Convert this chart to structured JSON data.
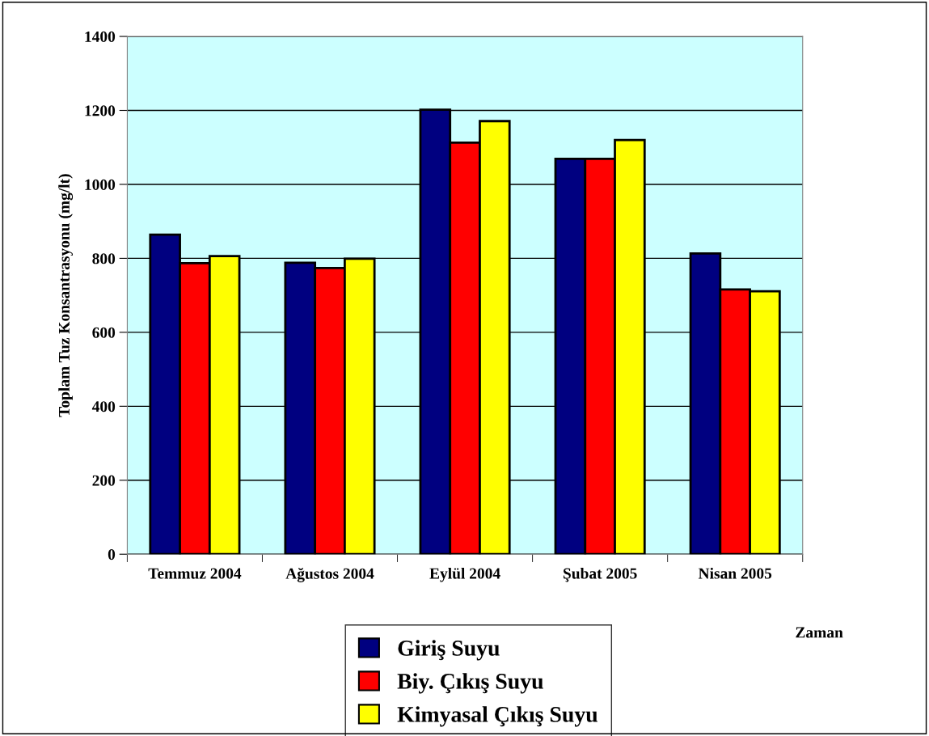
{
  "chart_data": {
    "type": "bar",
    "xlabel": "Zaman",
    "ylabel": "Toplam Tuz Konsantrasyonu (mg/lt)",
    "categories": [
      "Temmuz 2004",
      "Ağustos 2004",
      "Eylül 2004",
      "Şubat 2005",
      "Nisan 2005"
    ],
    "series": [
      {
        "name": "Giriş Suyu",
        "color": "#000080",
        "values": [
          864,
          788,
          1202,
          1069,
          813
        ]
      },
      {
        "name": "Biy. Çıkış Suyu",
        "color": "#ff0000",
        "values": [
          787,
          774,
          1113,
          1069,
          716
        ]
      },
      {
        "name": "Kimyasal Çıkış Suyu",
        "color": "#ffff00",
        "values": [
          806,
          799,
          1171,
          1120,
          711
        ]
      }
    ],
    "ylim": [
      0,
      1400
    ],
    "yticks": [
      0,
      200,
      400,
      600,
      800,
      1000,
      1200,
      1400
    ],
    "grid": "y",
    "legend": "bottom"
  }
}
